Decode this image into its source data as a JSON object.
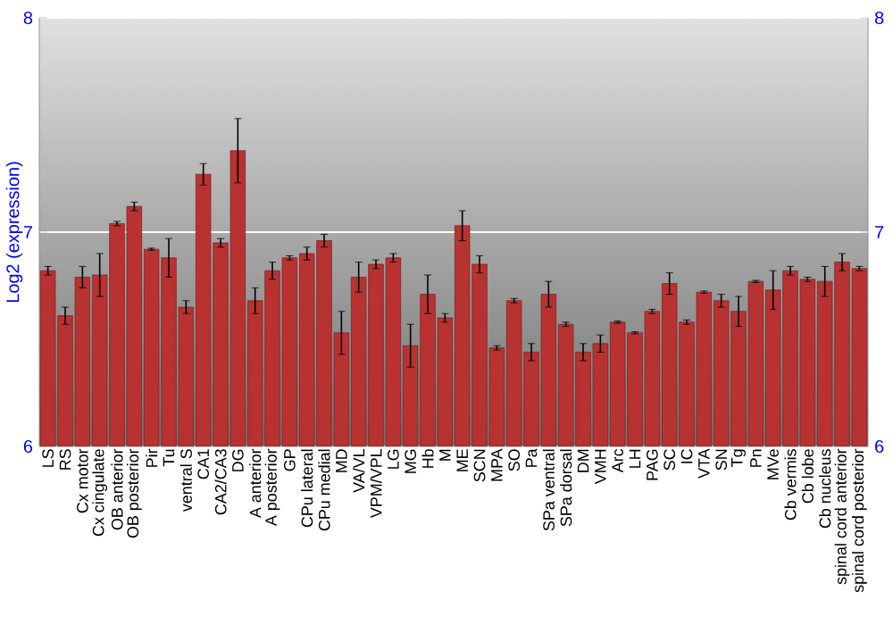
{
  "chart_data": {
    "type": "bar",
    "ylabel": "Log2 (expression)",
    "categories": [
      "LS",
      "RS",
      "Cx motor",
      "Cx cingulate",
      "OB anterior",
      "OB posterior",
      "Pir",
      "Tu",
      "ventral S",
      "CA1",
      "CA2/CA3",
      "DG",
      "A anterior",
      "A posterior",
      "GP",
      "CPu lateral",
      "CPu medial",
      "MD",
      "VA/VL",
      "VPM/VPL",
      "LG",
      "MG",
      "Hb",
      "M",
      "ME",
      "SCN",
      "MPA",
      "SO",
      "Pa",
      "SPa ventral",
      "SPa dorsal",
      "DM",
      "VMH",
      "Arc",
      "LH",
      "PAG",
      "SC",
      "IC",
      "VTA",
      "SN",
      "Tg",
      "Pn",
      "MVe",
      "Cb vermis",
      "Cb lobe",
      "Cb nucleus",
      "spinal cord anterior",
      "spinal cord posterior"
    ],
    "values": [
      6.82,
      6.61,
      6.79,
      6.8,
      7.04,
      7.12,
      6.92,
      6.88,
      6.65,
      7.27,
      6.95,
      7.38,
      6.68,
      6.82,
      6.88,
      6.9,
      6.96,
      6.53,
      6.79,
      6.85,
      6.88,
      6.47,
      6.71,
      6.6,
      7.03,
      6.85,
      6.46,
      6.68,
      6.44,
      6.71,
      6.57,
      6.44,
      6.48,
      6.58,
      6.53,
      6.63,
      6.76,
      6.58,
      6.72,
      6.68,
      6.63,
      6.77,
      6.73,
      6.82,
      6.78,
      6.77,
      6.86,
      6.83
    ],
    "errors": [
      0.02,
      0.04,
      0.05,
      0.1,
      0.01,
      0.02,
      0.005,
      0.09,
      0.03,
      0.05,
      0.02,
      0.15,
      0.06,
      0.04,
      0.01,
      0.03,
      0.03,
      0.1,
      0.07,
      0.02,
      0.02,
      0.1,
      0.09,
      0.02,
      0.07,
      0.04,
      0.01,
      0.01,
      0.04,
      0.06,
      0.01,
      0.04,
      0.04,
      0.005,
      0.005,
      0.01,
      0.05,
      0.01,
      0.005,
      0.03,
      0.07,
      0.005,
      0.09,
      0.02,
      0.01,
      0.07,
      0.04,
      0.01
    ],
    "color": "#b83232",
    "ylim": [
      6,
      8
    ],
    "yticks": [
      6,
      7,
      8
    ],
    "y2lim": [
      6,
      8
    ],
    "y2ticks": [
      6,
      7,
      8
    ],
    "grid": "y"
  }
}
